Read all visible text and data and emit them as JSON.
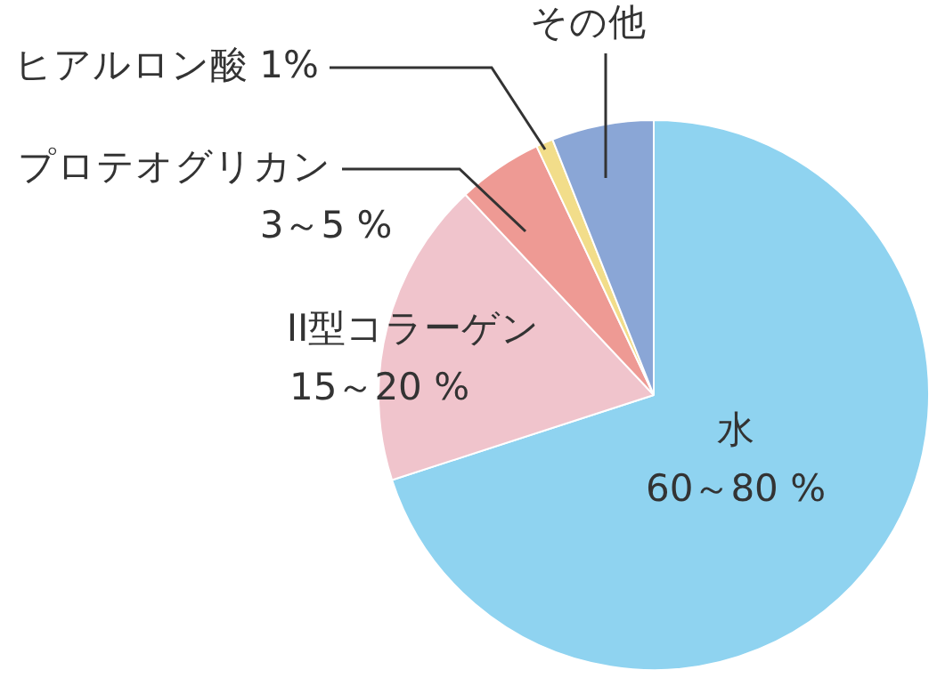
{
  "chart_data": {
    "type": "pie",
    "categories": [
      "水",
      "II型コラーゲン",
      "プロテオグリカン",
      "ヒアルロン酸",
      "その他"
    ],
    "values": [
      70,
      18,
      5,
      1,
      6
    ],
    "value_labels": [
      null,
      null,
      null,
      "1%",
      null
    ],
    "annotations": [
      "60～80 %",
      "15～20 %",
      "3～5 %"
    ],
    "colors": [
      "#8fd3f0",
      "#f0c4cc",
      "#ee9a94",
      "#f2dd8a",
      "#8aa6d6"
    ],
    "legend": false
  }
}
